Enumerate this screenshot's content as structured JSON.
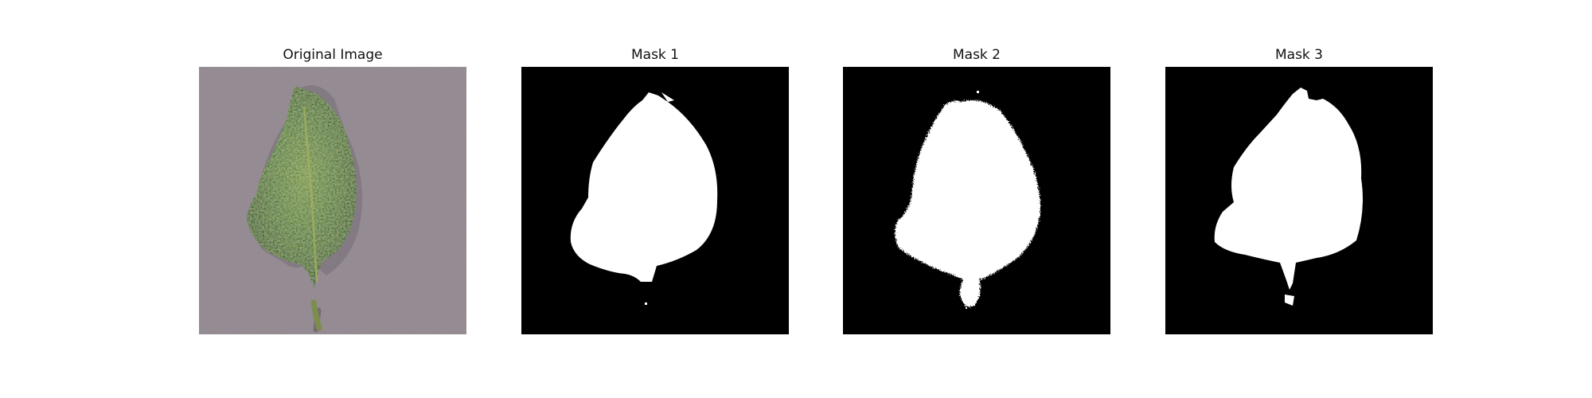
{
  "figure": {
    "panels": [
      {
        "id": "original",
        "title": "Original Image",
        "image": "leaf-photo"
      },
      {
        "id": "mask-1",
        "title": "Mask 1",
        "image": "binary-mask"
      },
      {
        "id": "mask-2",
        "title": "Mask 2",
        "image": "binary-mask"
      },
      {
        "id": "mask-3",
        "title": "Mask 3",
        "image": "binary-mask"
      }
    ]
  },
  "colors": {
    "background": "#ffffff",
    "mask_background": "#000000",
    "mask_foreground": "#ffffff",
    "photo_background": "#9a9098",
    "leaf_green": "#3f6a35",
    "stem_green": "#748a48"
  }
}
